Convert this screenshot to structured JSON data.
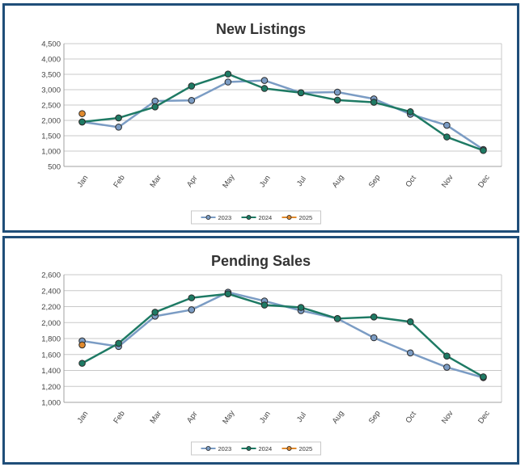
{
  "chart_data": [
    {
      "type": "line",
      "title": "New Listings",
      "xlabel": "",
      "ylabel": "",
      "categories": [
        "Jan",
        "Feb",
        "Mar",
        "Apr",
        "May",
        "Jun",
        "Jul",
        "Aug",
        "Sep",
        "Oct",
        "Nov",
        "Dec"
      ],
      "ylim": [
        500,
        4500
      ],
      "ytick_step": 500,
      "grid": true,
      "legend_position": "bottom-center",
      "series": [
        {
          "name": "2023",
          "color": "#7b9cc4",
          "values": [
            1950,
            1780,
            2630,
            2650,
            3250,
            3300,
            2900,
            2920,
            2700,
            2200,
            1840,
            1050
          ]
        },
        {
          "name": "2024",
          "color": "#1e7a64",
          "values": [
            1950,
            2080,
            2440,
            3120,
            3510,
            3040,
            2900,
            2660,
            2590,
            2280,
            1460,
            1020
          ]
        },
        {
          "name": "2025",
          "color": "#e08a2e",
          "values": [
            2220,
            null,
            null,
            null,
            null,
            null,
            null,
            null,
            null,
            null,
            null,
            null
          ]
        }
      ]
    },
    {
      "type": "line",
      "title": "Pending Sales",
      "xlabel": "",
      "ylabel": "",
      "categories": [
        "Jan",
        "Feb",
        "Mar",
        "Apr",
        "May",
        "Jun",
        "Jul",
        "Aug",
        "Sep",
        "Oct",
        "Nov",
        "Dec"
      ],
      "ylim": [
        1000,
        2600
      ],
      "ytick_step": 200,
      "grid": true,
      "legend_position": "bottom-center",
      "series": [
        {
          "name": "2023",
          "color": "#7b9cc4",
          "values": [
            1770,
            1700,
            2080,
            2160,
            2380,
            2270,
            2150,
            2050,
            1810,
            1620,
            1440,
            1310
          ]
        },
        {
          "name": "2024",
          "color": "#1e7a64",
          "values": [
            1490,
            1740,
            2130,
            2310,
            2360,
            2220,
            2190,
            2050,
            2070,
            2010,
            1580,
            1320
          ]
        },
        {
          "name": "2025",
          "color": "#e08a2e",
          "values": [
            1720,
            null,
            null,
            null,
            null,
            null,
            null,
            null,
            null,
            null,
            null,
            null
          ]
        }
      ]
    }
  ]
}
